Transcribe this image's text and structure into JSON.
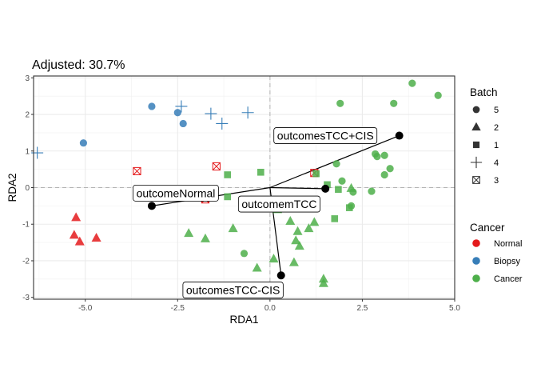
{
  "chart_data": {
    "type": "scatter",
    "title": "Adjusted: 30.7%",
    "xlabel": "RDA1",
    "ylabel": "RDA2",
    "xlim": [
      -6.4,
      5.0
    ],
    "ylim": [
      -3.05,
      3.05
    ],
    "x_ticks": [
      -5.0,
      -2.5,
      0.0,
      2.5,
      5.0
    ],
    "x_tick_labels": [
      "-5.0",
      "-2.5",
      "0.0",
      "2.5",
      "5.0"
    ],
    "y_ticks": [
      -3,
      -2,
      -1,
      0,
      1,
      2,
      3
    ],
    "y_tick_labels": [
      "-3",
      "-2",
      "-1",
      "0",
      "1",
      "2",
      "3"
    ],
    "grid": true,
    "colors": {
      "Normal": "#e41a1c",
      "Biopsy": "#377eb8",
      "Cancer": "#4daf4a"
    },
    "legend_batch": {
      "title": "Batch",
      "items": [
        {
          "label": "5",
          "shape": "circle"
        },
        {
          "label": "2",
          "shape": "triangle"
        },
        {
          "label": "1",
          "shape": "square"
        },
        {
          "label": "4",
          "shape": "plus"
        },
        {
          "label": "3",
          "shape": "boxx"
        }
      ]
    },
    "legend_cancer": {
      "title": "Cancer",
      "items": [
        {
          "label": "Normal",
          "color": "#e41a1c"
        },
        {
          "label": "Biopsy",
          "color": "#377eb8"
        },
        {
          "label": "Cancer",
          "color": "#4daf4a"
        }
      ]
    },
    "points": [
      {
        "x": -3.2,
        "y": 2.22,
        "batch": "5",
        "cancer": "Biopsy"
      },
      {
        "x": -2.5,
        "y": 2.05,
        "batch": "5",
        "cancer": "Biopsy"
      },
      {
        "x": -2.35,
        "y": 1.75,
        "batch": "5",
        "cancer": "Biopsy"
      },
      {
        "x": -5.05,
        "y": 1.22,
        "batch": "5",
        "cancer": "Biopsy"
      },
      {
        "x": -2.4,
        "y": 2.22,
        "batch": "4",
        "cancer": "Biopsy"
      },
      {
        "x": -1.6,
        "y": 2.02,
        "batch": "4",
        "cancer": "Biopsy"
      },
      {
        "x": -1.3,
        "y": 1.75,
        "batch": "4",
        "cancer": "Biopsy"
      },
      {
        "x": -0.6,
        "y": 2.05,
        "batch": "4",
        "cancer": "Biopsy"
      },
      {
        "x": -6.3,
        "y": 0.95,
        "batch": "4",
        "cancer": "Biopsy"
      },
      {
        "x": -5.25,
        "y": -0.82,
        "batch": "2",
        "cancer": "Normal"
      },
      {
        "x": -5.3,
        "y": -1.3,
        "batch": "2",
        "cancer": "Normal"
      },
      {
        "x": -5.15,
        "y": -1.48,
        "batch": "2",
        "cancer": "Normal"
      },
      {
        "x": -4.7,
        "y": -1.38,
        "batch": "2",
        "cancer": "Normal"
      },
      {
        "x": -3.6,
        "y": 0.45,
        "batch": "3",
        "cancer": "Normal"
      },
      {
        "x": -1.45,
        "y": 0.58,
        "batch": "3",
        "cancer": "Normal"
      },
      {
        "x": -1.75,
        "y": -0.32,
        "batch": "3",
        "cancer": "Normal"
      },
      {
        "x": 1.2,
        "y": 0.4,
        "batch": "3",
        "cancer": "Normal"
      },
      {
        "x": 3.85,
        "y": 2.85,
        "batch": "5",
        "cancer": "Cancer"
      },
      {
        "x": 4.55,
        "y": 2.52,
        "batch": "5",
        "cancer": "Cancer"
      },
      {
        "x": 3.35,
        "y": 2.3,
        "batch": "5",
        "cancer": "Cancer"
      },
      {
        "x": 1.9,
        "y": 2.3,
        "batch": "5",
        "cancer": "Cancer"
      },
      {
        "x": 3.1,
        "y": 0.88,
        "batch": "5",
        "cancer": "Cancer"
      },
      {
        "x": 2.85,
        "y": 0.92,
        "batch": "5",
        "cancer": "Cancer"
      },
      {
        "x": 2.9,
        "y": 0.85,
        "batch": "5",
        "cancer": "Cancer"
      },
      {
        "x": 1.8,
        "y": 0.65,
        "batch": "5",
        "cancer": "Cancer"
      },
      {
        "x": 3.25,
        "y": 0.52,
        "batch": "5",
        "cancer": "Cancer"
      },
      {
        "x": 3.1,
        "y": 0.35,
        "batch": "5",
        "cancer": "Cancer"
      },
      {
        "x": 1.95,
        "y": 0.18,
        "batch": "5",
        "cancer": "Cancer"
      },
      {
        "x": 2.25,
        "y": -0.12,
        "batch": "5",
        "cancer": "Cancer"
      },
      {
        "x": 2.75,
        "y": -0.1,
        "batch": "5",
        "cancer": "Cancer"
      },
      {
        "x": 2.2,
        "y": -0.5,
        "batch": "5",
        "cancer": "Cancer"
      },
      {
        "x": -0.7,
        "y": -1.8,
        "batch": "5",
        "cancer": "Cancer"
      },
      {
        "x": 1.55,
        "y": 0.08,
        "batch": "1",
        "cancer": "Cancer"
      },
      {
        "x": 1.75,
        "y": -0.85,
        "batch": "1",
        "cancer": "Cancer"
      },
      {
        "x": 1.85,
        "y": -0.05,
        "batch": "1",
        "cancer": "Cancer"
      },
      {
        "x": 2.15,
        "y": -0.55,
        "batch": "1",
        "cancer": "Cancer"
      },
      {
        "x": -1.15,
        "y": 0.35,
        "batch": "1",
        "cancer": "Cancer"
      },
      {
        "x": -0.25,
        "y": 0.42,
        "batch": "1",
        "cancer": "Cancer"
      },
      {
        "x": 1.25,
        "y": 0.38,
        "batch": "1",
        "cancer": "Cancer"
      },
      {
        "x": -1.15,
        "y": -0.25,
        "batch": "1",
        "cancer": "Cancer"
      },
      {
        "x": 2.2,
        "y": -0.02,
        "batch": "2",
        "cancer": "Cancer"
      },
      {
        "x": 0.2,
        "y": -0.6,
        "batch": "2",
        "cancer": "Cancer"
      },
      {
        "x": -2.2,
        "y": -1.25,
        "batch": "2",
        "cancer": "Cancer"
      },
      {
        "x": -1.75,
        "y": -1.4,
        "batch": "2",
        "cancer": "Cancer"
      },
      {
        "x": -1.0,
        "y": -1.12,
        "batch": "2",
        "cancer": "Cancer"
      },
      {
        "x": 0.55,
        "y": -0.92,
        "batch": "2",
        "cancer": "Cancer"
      },
      {
        "x": 0.75,
        "y": -1.2,
        "batch": "2",
        "cancer": "Cancer"
      },
      {
        "x": 1.2,
        "y": -0.95,
        "batch": "2",
        "cancer": "Cancer"
      },
      {
        "x": 1.05,
        "y": -1.12,
        "batch": "2",
        "cancer": "Cancer"
      },
      {
        "x": 0.7,
        "y": -1.45,
        "batch": "2",
        "cancer": "Cancer"
      },
      {
        "x": 0.8,
        "y": -1.6,
        "batch": "2",
        "cancer": "Cancer"
      },
      {
        "x": 0.1,
        "y": -1.95,
        "batch": "2",
        "cancer": "Cancer"
      },
      {
        "x": 0.65,
        "y": -2.05,
        "batch": "2",
        "cancer": "Cancer"
      },
      {
        "x": -0.35,
        "y": -2.2,
        "batch": "2",
        "cancer": "Cancer"
      },
      {
        "x": 1.45,
        "y": -2.5,
        "batch": "2",
        "cancer": "Cancer"
      },
      {
        "x": 1.45,
        "y": -2.62,
        "batch": "2",
        "cancer": "Cancer"
      }
    ],
    "arrows": [
      {
        "label": "outcomesTCC+CIS",
        "x": 3.5,
        "y": 1.42,
        "label_x": 1.5,
        "label_y": 1.42
      },
      {
        "label": "outcomeNormal",
        "x": -3.2,
        "y": -0.5,
        "label_x": -2.55,
        "label_y": -0.15
      },
      {
        "label": "outcomemTCC",
        "x": 1.5,
        "y": -0.03,
        "label_x": 0.25,
        "label_y": -0.45
      },
      {
        "label": "outcomesTCC-CIS",
        "x": 0.3,
        "y": -2.4,
        "label_x": -1.0,
        "label_y": -2.8
      }
    ]
  }
}
